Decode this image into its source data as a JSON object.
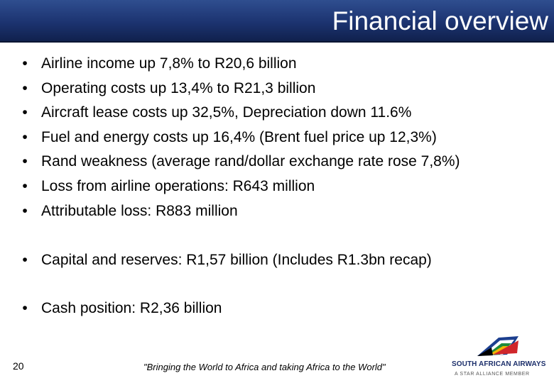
{
  "header": {
    "title": "Financial overview"
  },
  "bullets": [
    "Airline income up 7,8% to R20,6 billion",
    "Operating costs up 13,4% to R21,3 billion",
    "Aircraft lease costs up 32,5%, Depreciation down 11.6%",
    "Fuel and energy costs up 16,4% (Brent fuel price up 12,3%)",
    "Rand weakness (average rand/dollar exchange rate rose 7,8%)",
    "Loss from airline operations: R643 million",
    "Attributable loss: R883 million"
  ],
  "capital": "Capital and reserves: R1,57 billion (Includes R1.3bn recap)",
  "cash": "Cash position: R2,36 billion",
  "bullet_symbol": "•",
  "footer": {
    "page_number": "20",
    "tagline": "\"Bringing the World to Africa and taking Africa to the World\"",
    "logo_name": "SOUTH AFRICAN AIRWAYS",
    "logo_sub": "A STAR ALLIANCE MEMBER"
  },
  "colors": {
    "title_bar": "#1c3370",
    "title_text": "#ffffff",
    "logo_text": "#1c2f6b"
  }
}
